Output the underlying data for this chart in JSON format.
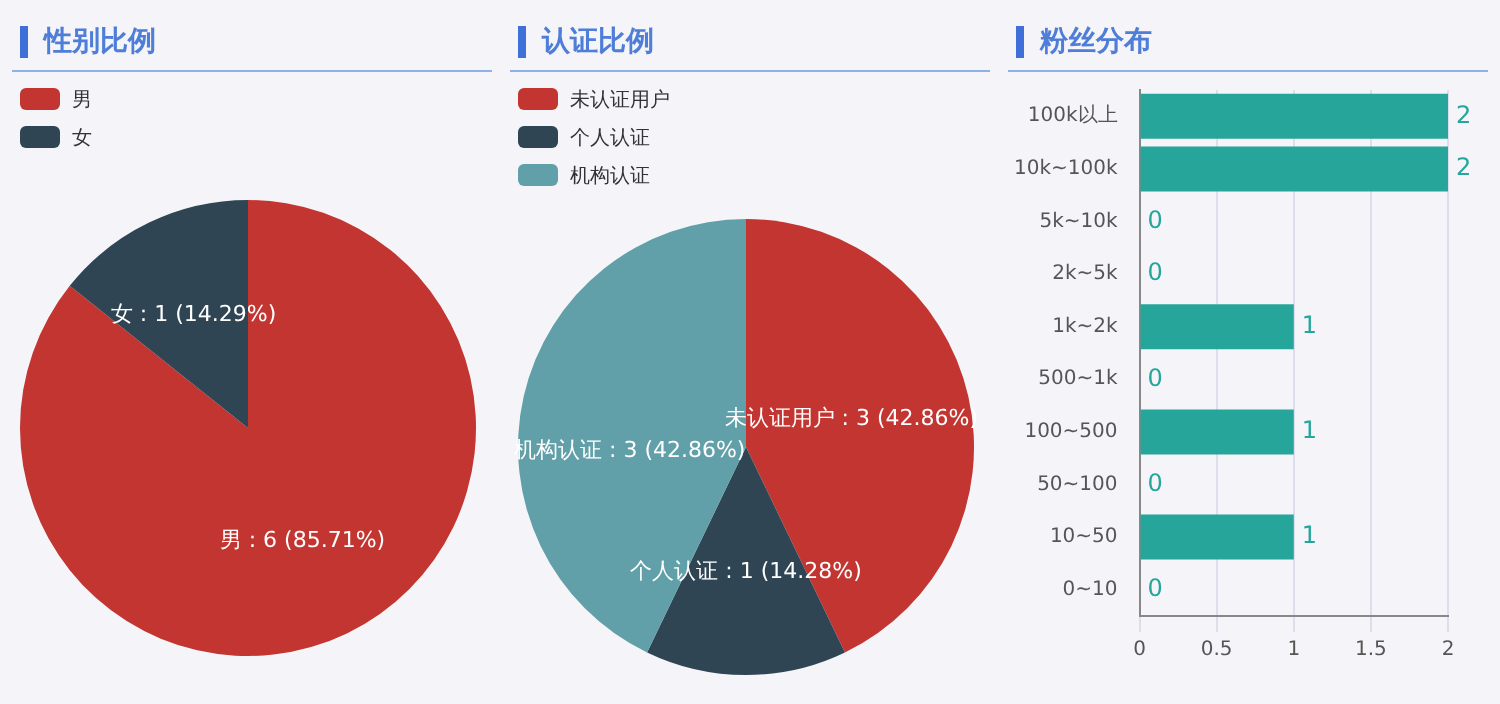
{
  "chart_data": [
    {
      "type": "pie",
      "title": "性别比例",
      "categories": [
        "男",
        "女"
      ],
      "values": [
        6,
        1
      ],
      "colors": [
        "#c23531",
        "#2f4554"
      ],
      "value_labels": [
        "男 : 6 (85.71%)",
        "女 : 1 (14.29%)"
      ],
      "legend": "top left"
    },
    {
      "type": "pie",
      "title": "认证比例",
      "categories": [
        "未认证用户",
        "个人认证",
        "机构认证"
      ],
      "values": [
        3,
        1,
        3
      ],
      "colors": [
        "#c23531",
        "#2f4554",
        "#61a0a8"
      ],
      "value_labels": [
        "未认证用户 : 3 (42.86%)",
        "个人认证 : 1 (14.28%)",
        "机构认证 : 3 (42.86%)"
      ],
      "legend": "top left"
    },
    {
      "type": "bar",
      "title": "粉丝分布",
      "orientation": "horizontal",
      "categories": [
        "100k以上",
        "10k~100k",
        "5k~10k",
        "2k~5k",
        "1k~2k",
        "500~1k",
        "100~500",
        "50~100",
        "10~50",
        "0~10"
      ],
      "values": [
        2,
        2,
        0,
        0,
        1,
        0,
        1,
        0,
        1,
        0
      ],
      "color": "#26a69a",
      "xlim": [
        0,
        2
      ],
      "xticks": [
        0,
        0.5,
        1,
        1.5,
        2
      ],
      "grid": "x",
      "data_labels": true
    }
  ]
}
